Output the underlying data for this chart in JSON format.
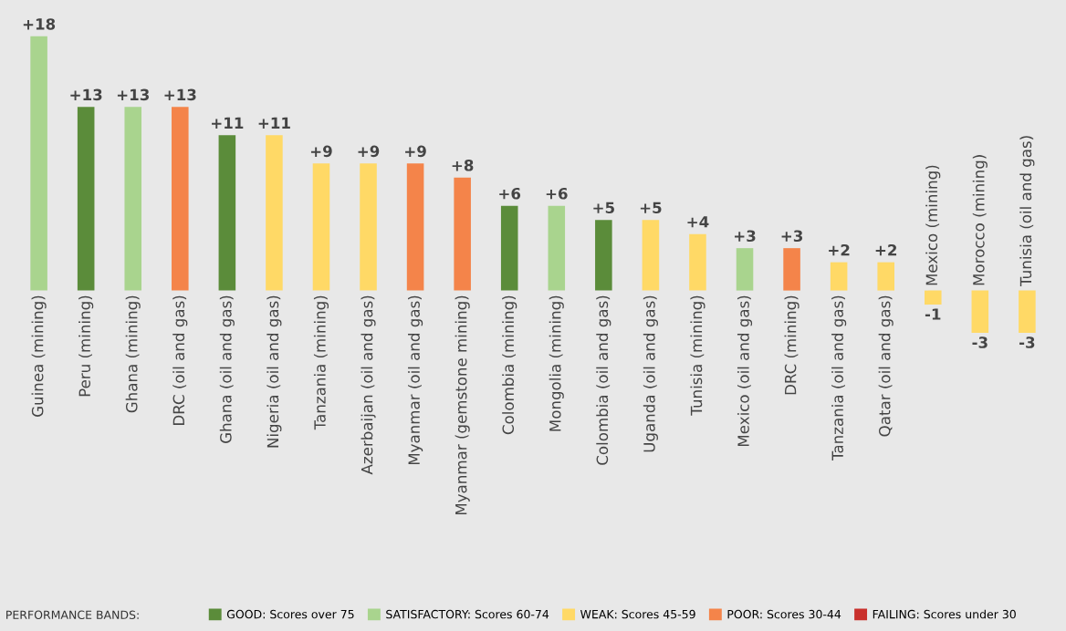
{
  "chart_data": {
    "type": "bar",
    "stacked": true,
    "legend": "bottom",
    "legend_title": "PERFORMANCE BANDS:",
    "categories": [
      "Guinea (mining)",
      "Peru (mining)",
      "Ghana (mining)",
      "DRC (oil and gas)",
      "Ghana (oil and gas)",
      "Nigeria (oil and gas)",
      "Tanzania (mining)",
      "Azerbaijan (oil and gas)",
      "Myanmar (oil and gas)",
      "Myanmar (gemstone mining)",
      "Colombia (mining)",
      "Mongolia (mining)",
      "Colombia (oil and gas)",
      "Uganda (oil and gas)",
      "Tunisia (mining)",
      "Mexico (oil and gas)",
      "DRC (mining)",
      "Tanzania (oil and gas)",
      "Qatar (oil and gas)",
      "Mexico (mining)",
      "Morocco (mining)",
      "Tunisia (oil and gas)"
    ],
    "series": [
      {
        "name": "GOOD: Scores over 75",
        "color": "#5b8c3a",
        "values": [
          null,
          13,
          null,
          null,
          11,
          null,
          null,
          null,
          null,
          null,
          6,
          null,
          5,
          null,
          null,
          null,
          null,
          null,
          null,
          null,
          null,
          null
        ],
        "value_labels": [
          null,
          "+13",
          null,
          null,
          "+11",
          null,
          null,
          null,
          null,
          null,
          "+6",
          null,
          "+5",
          null,
          null,
          null,
          null,
          null,
          null,
          null,
          null,
          null
        ]
      },
      {
        "name": "SATISFACTORY: Scores 60-74",
        "color": "#a9d48e",
        "values": [
          18,
          null,
          13,
          null,
          null,
          null,
          null,
          null,
          null,
          null,
          null,
          6,
          null,
          null,
          null,
          3,
          null,
          null,
          null,
          null,
          null,
          null
        ],
        "value_labels": [
          "+18",
          null,
          "+13",
          null,
          null,
          null,
          null,
          null,
          null,
          null,
          null,
          "+6",
          null,
          null,
          null,
          "+3",
          null,
          null,
          null,
          null,
          null,
          null
        ]
      },
      {
        "name": "WEAK: Scores 45-59",
        "color": "#ffd966",
        "values": [
          null,
          null,
          null,
          null,
          null,
          11,
          9,
          9,
          null,
          null,
          null,
          null,
          null,
          5,
          4,
          null,
          null,
          2,
          2,
          -1,
          -3,
          -3
        ],
        "value_labels": [
          null,
          null,
          null,
          null,
          null,
          "+11",
          "+9",
          "+9",
          null,
          null,
          null,
          null,
          null,
          "+5",
          "+4",
          null,
          null,
          "+2",
          "+2",
          "-1",
          "-3",
          "-3"
        ]
      },
      {
        "name": "POOR: Scores 30-44",
        "color": "#f4844a",
        "values": [
          null,
          null,
          null,
          13,
          null,
          null,
          null,
          null,
          9,
          8,
          null,
          null,
          null,
          null,
          null,
          null,
          3,
          null,
          null,
          null,
          null,
          null
        ],
        "value_labels": [
          null,
          null,
          null,
          "+13",
          null,
          null,
          null,
          null,
          "+9",
          "+8",
          null,
          null,
          null,
          null,
          null,
          null,
          "+3",
          null,
          null,
          null,
          null,
          null
        ]
      },
      {
        "name": "FAILING: Scores under 30",
        "color": "#c9302c",
        "values": [
          null,
          null,
          null,
          null,
          null,
          null,
          null,
          null,
          null,
          null,
          null,
          null,
          null,
          null,
          null,
          null,
          null,
          null,
          null,
          null,
          null,
          null
        ]
      }
    ]
  }
}
